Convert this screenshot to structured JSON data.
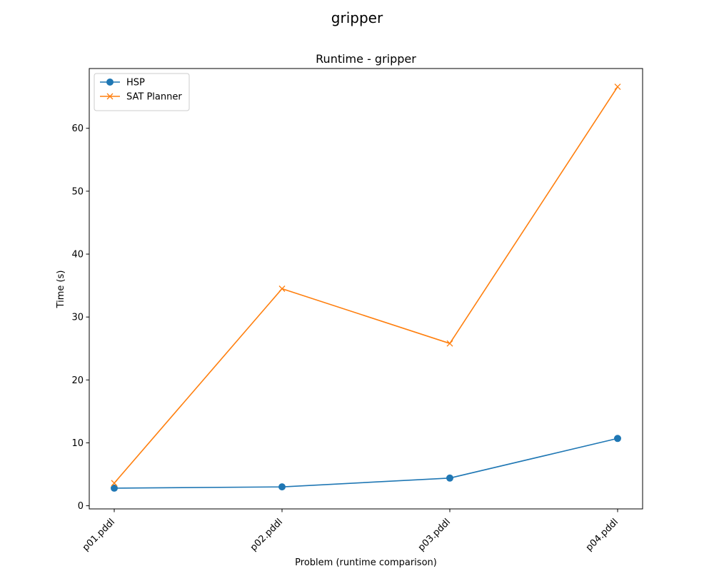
{
  "chart_data": {
    "type": "line",
    "suptitle": "gripper",
    "title": "Runtime - gripper",
    "xlabel": "Problem (runtime comparison)",
    "ylabel": "Time (s)",
    "categories": [
      "p01.pddl",
      "p02.pddl",
      "p03.pddl",
      "p04.pddl"
    ],
    "ylim": [
      -0.5,
      69.5
    ],
    "yticks": [
      0,
      10,
      20,
      30,
      40,
      50,
      60
    ],
    "grid": false,
    "legend_position": "top-left",
    "series": [
      {
        "name": "HSP",
        "color": "#1f77b4",
        "marker": "circle",
        "values": [
          2.8,
          3.0,
          4.4,
          10.7
        ]
      },
      {
        "name": "SAT Planner",
        "color": "#ff7f0e",
        "marker": "x",
        "values": [
          3.6,
          34.5,
          25.8,
          66.6
        ]
      }
    ]
  }
}
